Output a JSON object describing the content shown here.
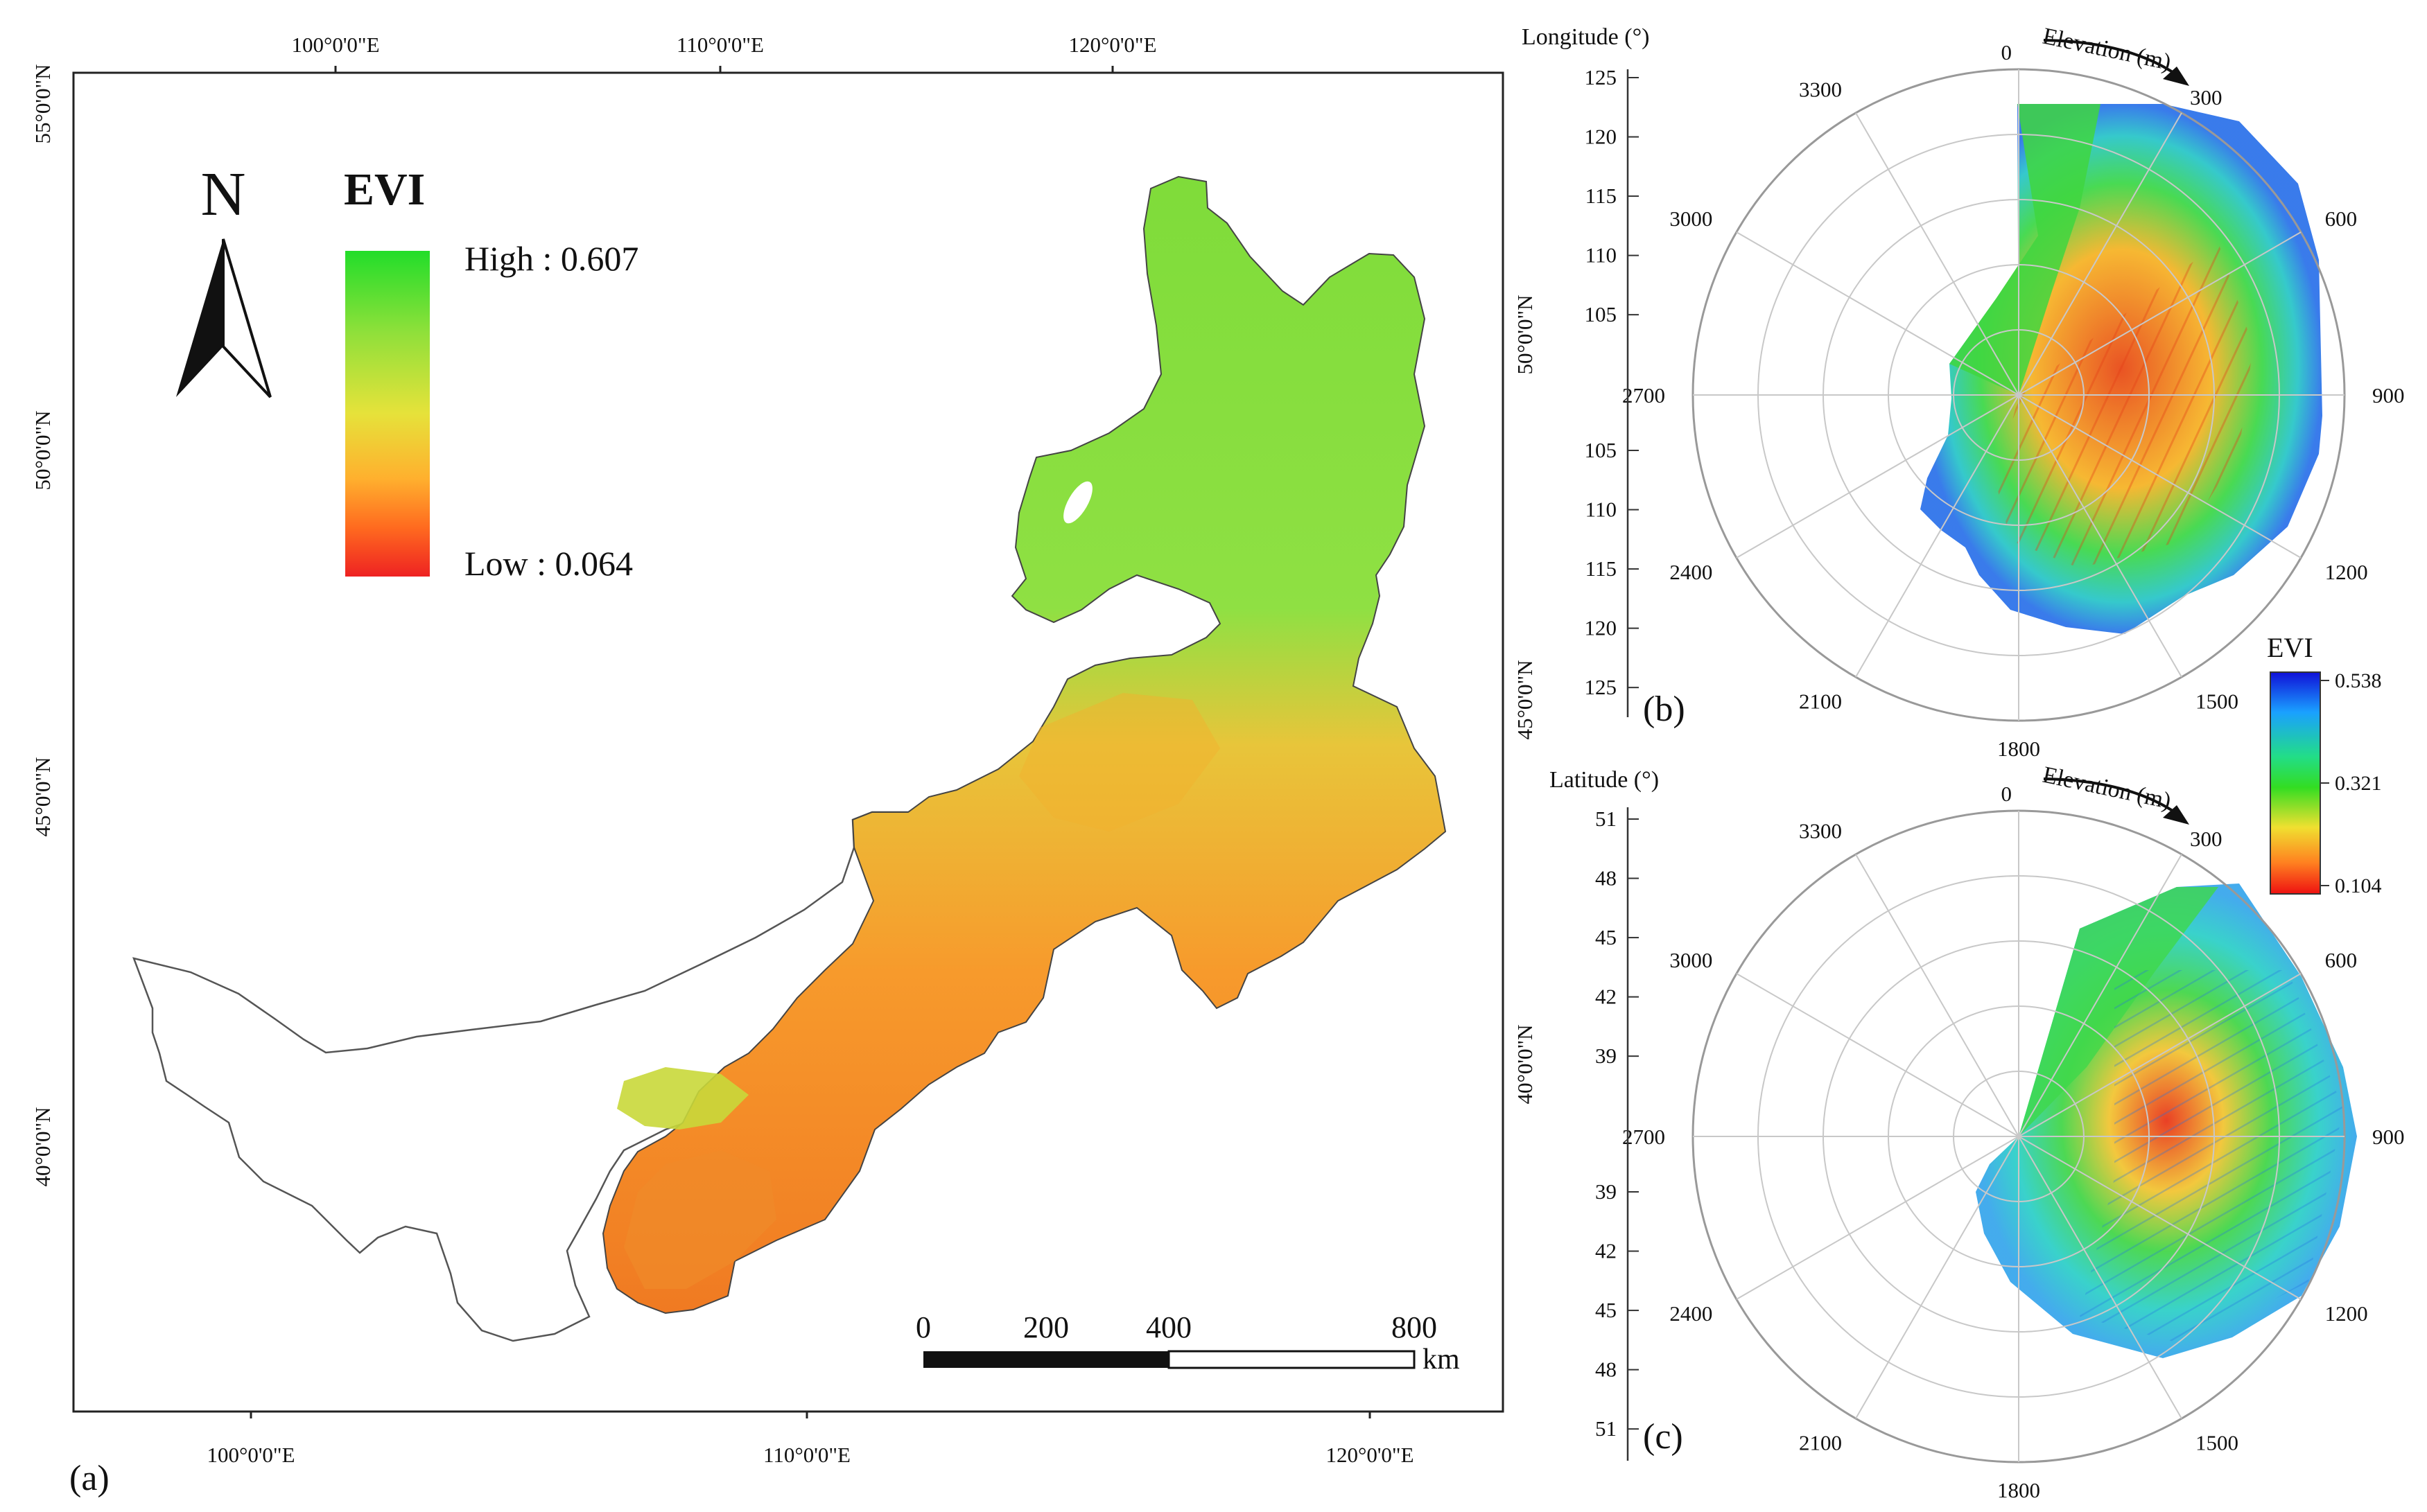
{
  "map_panel": {
    "panel_label": "(a)",
    "north_arrow_label": "N",
    "legend": {
      "title": "EVI",
      "high_label": "High : 0.607",
      "low_label": "Low : 0.064",
      "colors": [
        "#22dd2a",
        "#8fe03a",
        "#e6e23a",
        "#ffb02e",
        "#ff6a1f",
        "#ee2222"
      ]
    },
    "top_lon_labels": [
      "100°0'0\"E",
      "110°0'0\"E",
      "120°0'0\"E"
    ],
    "bottom_lon_labels": [
      "100°0'0\"E",
      "110°0'0\"E",
      "120°0'0\"E"
    ],
    "left_lat_labels": [
      "55°0'0\"N",
      "50°0'0\"N",
      "45°0'0\"N",
      "40°0'0\"N"
    ],
    "right_lat_labels": [
      "50°0'0\"N",
      "45°0'0\"N",
      "40°0'0\"N"
    ],
    "scale_bar": {
      "labels": [
        "0",
        "200",
        "400",
        "800"
      ],
      "unit": "km"
    }
  },
  "polar_b": {
    "panel_label": "(b)",
    "radial_axis_label": "Longitude (°)",
    "radial_ticks_top": [
      "125",
      "120",
      "115",
      "110",
      "105"
    ],
    "radial_ticks_bottom": [
      "105",
      "110",
      "115",
      "120",
      "125"
    ],
    "angular_axis_label": "Elevation (m)",
    "angular_ticks": [
      "0",
      "300",
      "600",
      "900",
      "1200",
      "1500",
      "1800",
      "2100",
      "2400",
      "2700",
      "3000",
      "3300"
    ]
  },
  "polar_c": {
    "panel_label": "(c)",
    "radial_axis_label": "Latitude (°)",
    "radial_ticks_top": [
      "51",
      "48",
      "45",
      "42",
      "39"
    ],
    "radial_ticks_bottom": [
      "39",
      "42",
      "45",
      "48",
      "51"
    ],
    "angular_axis_label": "Elevation (m)",
    "angular_ticks": [
      "0",
      "300",
      "600",
      "900",
      "1200",
      "1500",
      "1800",
      "2100",
      "2400",
      "2700",
      "3000",
      "3300"
    ]
  },
  "evi_colorbar": {
    "title": "EVI",
    "tick_labels": [
      "0.538",
      "0.321",
      "0.104"
    ],
    "colors": [
      "#1010d8",
      "#1aa0ff",
      "#22dd88",
      "#33dd22",
      "#f0e030",
      "#ff8020",
      "#ee1111"
    ]
  }
}
